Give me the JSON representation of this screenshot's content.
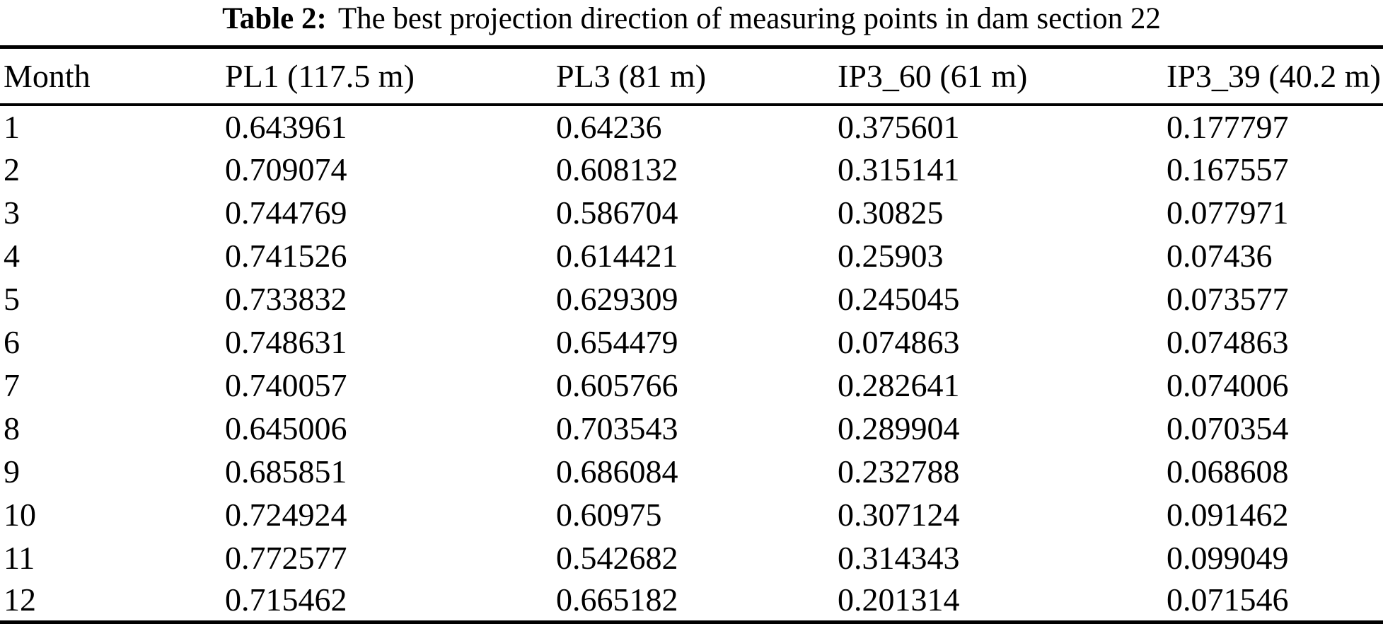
{
  "page": {
    "background": "#ffffff",
    "text_color": "#000000"
  },
  "table": {
    "caption": {
      "label": "Table 2:",
      "text": "The best projection direction of measuring points in dam section 22"
    },
    "columns": [
      "Month",
      "PL1 (117.5 m)",
      "PL3 (81 m)",
      "IP3_60 (61 m)",
      "IP3_39 (40.2 m)"
    ],
    "rows": [
      [
        "1",
        "0.643961",
        "0.64236",
        "0.375601",
        "0.177797"
      ],
      [
        "2",
        "0.709074",
        "0.608132",
        "0.315141",
        "0.167557"
      ],
      [
        "3",
        "0.744769",
        "0.586704",
        "0.30825",
        "0.077971"
      ],
      [
        "4",
        "0.741526",
        "0.614421",
        "0.25903",
        "0.07436"
      ],
      [
        "5",
        "0.733832",
        "0.629309",
        "0.245045",
        "0.073577"
      ],
      [
        "6",
        "0.748631",
        "0.654479",
        "0.074863",
        "0.074863"
      ],
      [
        "7",
        "0.740057",
        "0.605766",
        "0.282641",
        "0.074006"
      ],
      [
        "8",
        "0.645006",
        "0.703543",
        "0.289904",
        "0.070354"
      ],
      [
        "9",
        "0.685851",
        "0.686084",
        "0.232788",
        "0.068608"
      ],
      [
        "10",
        "0.724924",
        "0.60975",
        "0.307124",
        "0.091462"
      ],
      [
        "11",
        "0.772577",
        "0.542682",
        "0.314343",
        "0.099049"
      ],
      [
        "12",
        "0.715462",
        "0.665182",
        "0.201314",
        "0.071546"
      ]
    ]
  },
  "chart_data": {
    "type": "table",
    "title": "Table 2: The best projection direction of measuring points in dam section 22",
    "columns": [
      "Month",
      "PL1 (117.5 m)",
      "PL3 (81 m)",
      "IP3_60 (61 m)",
      "IP3_39 (40.2 m)"
    ],
    "x": [
      1,
      2,
      3,
      4,
      5,
      6,
      7,
      8,
      9,
      10,
      11,
      12
    ],
    "series": [
      {
        "name": "PL1 (117.5 m)",
        "values": [
          0.643961,
          0.709074,
          0.744769,
          0.741526,
          0.733832,
          0.748631,
          0.740057,
          0.645006,
          0.685851,
          0.724924,
          0.772577,
          0.715462
        ]
      },
      {
        "name": "PL3 (81 m)",
        "values": [
          0.64236,
          0.608132,
          0.586704,
          0.614421,
          0.629309,
          0.654479,
          0.605766,
          0.703543,
          0.686084,
          0.60975,
          0.542682,
          0.665182
        ]
      },
      {
        "name": "IP3_60 (61 m)",
        "values": [
          0.375601,
          0.315141,
          0.30825,
          0.25903,
          0.245045,
          0.074863,
          0.282641,
          0.289904,
          0.232788,
          0.307124,
          0.314343,
          0.201314
        ]
      },
      {
        "name": "IP3_39 (40.2 m)",
        "values": [
          0.177797,
          0.167557,
          0.077971,
          0.07436,
          0.073577,
          0.074863,
          0.074006,
          0.070354,
          0.068608,
          0.091462,
          0.099049,
          0.071546
        ]
      }
    ]
  }
}
